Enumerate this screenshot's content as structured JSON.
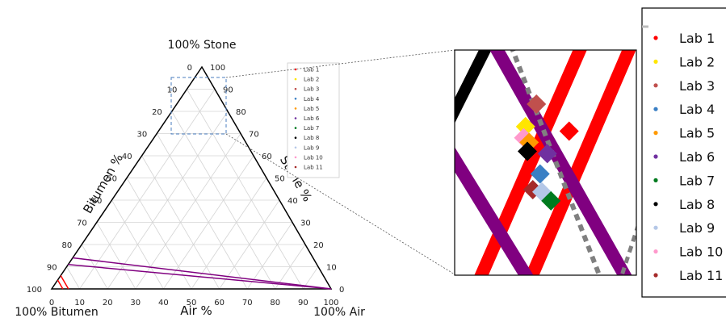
{
  "chart_data": {
    "type": "scatter",
    "subtype": "ternary",
    "corners": {
      "top": "100% Stone",
      "left": "100% Bitumen",
      "right": "100% Air"
    },
    "axes": {
      "left": {
        "label": "Bitumen %",
        "ticks": [
          "0",
          "10",
          "20",
          "30",
          "40",
          "50",
          "60",
          "70",
          "80",
          "90",
          "100"
        ]
      },
      "right": {
        "label": "Stone %",
        "ticks": [
          "0",
          "10",
          "20",
          "30",
          "40",
          "50",
          "60",
          "70",
          "80",
          "90",
          "100"
        ]
      },
      "bottom": {
        "label": "Air %",
        "ticks": [
          "0",
          "10",
          "20",
          "30",
          "40",
          "50",
          "60",
          "70",
          "80",
          "90",
          "100"
        ]
      }
    },
    "grid": true,
    "reference_lines": [
      {
        "color": "#ff0000",
        "bitumen_at_air0": 0.96,
        "air_at_stone0": 0.04
      },
      {
        "color": "#ff0000",
        "bitumen_at_air0": 0.94,
        "air_at_stone0": 0.06
      },
      {
        "color": "#800080",
        "bitumen_at_air0": 0.89,
        "air_at_stone0": 1.0
      },
      {
        "color": "#800080",
        "bitumen_at_air0": 0.86,
        "air_at_stone0": 1.0
      }
    ],
    "legend": {
      "placement": "right",
      "entries": [
        {
          "label": "Lab 1",
          "color": "#ff0000"
        },
        {
          "label": "Lab 2",
          "color": "#ffe600"
        },
        {
          "label": "Lab 3",
          "color": "#c0504d"
        },
        {
          "label": "Lab 4",
          "color": "#3a7fc4"
        },
        {
          "label": "Lab 5",
          "color": "#ff9900"
        },
        {
          "label": "Lab 6",
          "color": "#7030a0"
        },
        {
          "label": "Lab 7",
          "color": "#007a1e"
        },
        {
          "label": "Lab 8",
          "color": "#000000"
        },
        {
          "label": "Lab 9",
          "color": "#b4c7e7"
        },
        {
          "label": "Lab 10",
          "color": "#ff99cc"
        },
        {
          "label": "Lab 11",
          "color": "#a52a2a"
        }
      ]
    },
    "zoom_points": [
      {
        "lab": 3,
        "color": "#c0504d",
        "zx": 0.45,
        "zy": 0.24
      },
      {
        "lab": 1,
        "color": "#ff0000",
        "zx": 0.63,
        "zy": 0.36
      },
      {
        "lab": 2,
        "color": "#ffe600",
        "zx": 0.39,
        "zy": 0.34
      },
      {
        "lab": 10,
        "color": "#ff99cc",
        "zx": 0.38,
        "zy": 0.39
      },
      {
        "lab": 5,
        "color": "#ff9900",
        "zx": 0.41,
        "zy": 0.41
      },
      {
        "lab": 8,
        "color": "#000000",
        "zx": 0.4,
        "zy": 0.45
      },
      {
        "lab": 6,
        "color": "#7030a0",
        "zx": 0.51,
        "zy": 0.46
      },
      {
        "lab": 4,
        "color": "#3a7fc4",
        "zx": 0.47,
        "zy": 0.55
      },
      {
        "lab": 11,
        "color": "#a52a2a",
        "zx": 0.43,
        "zy": 0.62
      },
      {
        "lab": 9,
        "color": "#b4c7e7",
        "zx": 0.48,
        "zy": 0.63
      },
      {
        "lab": 7,
        "color": "#007a1e",
        "zx": 0.53,
        "zy": 0.67
      }
    ]
  }
}
